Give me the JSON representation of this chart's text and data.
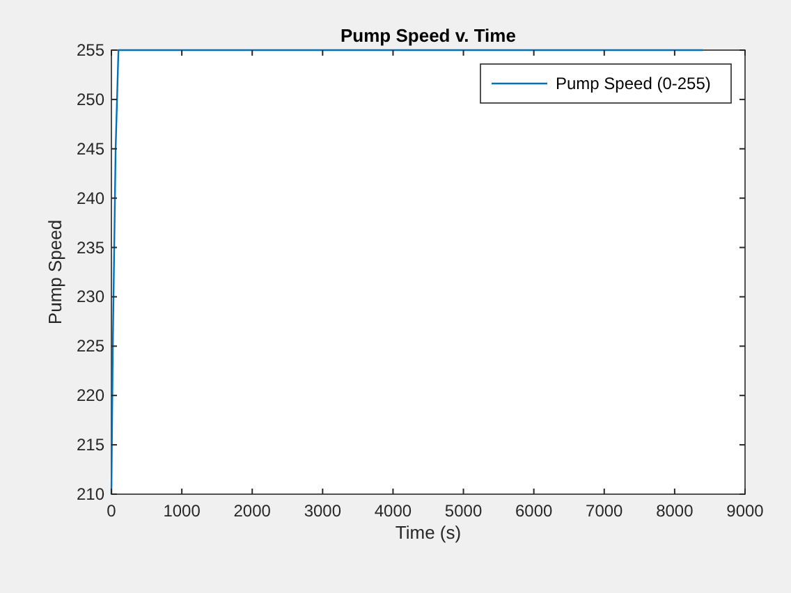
{
  "chart_data": {
    "type": "line",
    "title": "Pump Speed v. Time",
    "xlabel": "Time (s)",
    "ylabel": "Pump Speed",
    "series": [
      {
        "name": "Pump Speed (0-255)",
        "color": "#0072bd",
        "x": [
          0,
          20,
          60,
          100,
          8400
        ],
        "values": [
          210,
          225,
          245,
          255,
          255
        ]
      }
    ],
    "xlim": [
      0,
      9000
    ],
    "xticks": [
      0,
      1000,
      2000,
      3000,
      4000,
      5000,
      6000,
      7000,
      8000,
      9000
    ],
    "ylim": [
      210,
      255
    ],
    "yticks": [
      210,
      215,
      220,
      225,
      230,
      235,
      240,
      245,
      250,
      255
    ],
    "legend": "top right",
    "grid": false,
    "marker": "none",
    "line_style": "solid"
  }
}
